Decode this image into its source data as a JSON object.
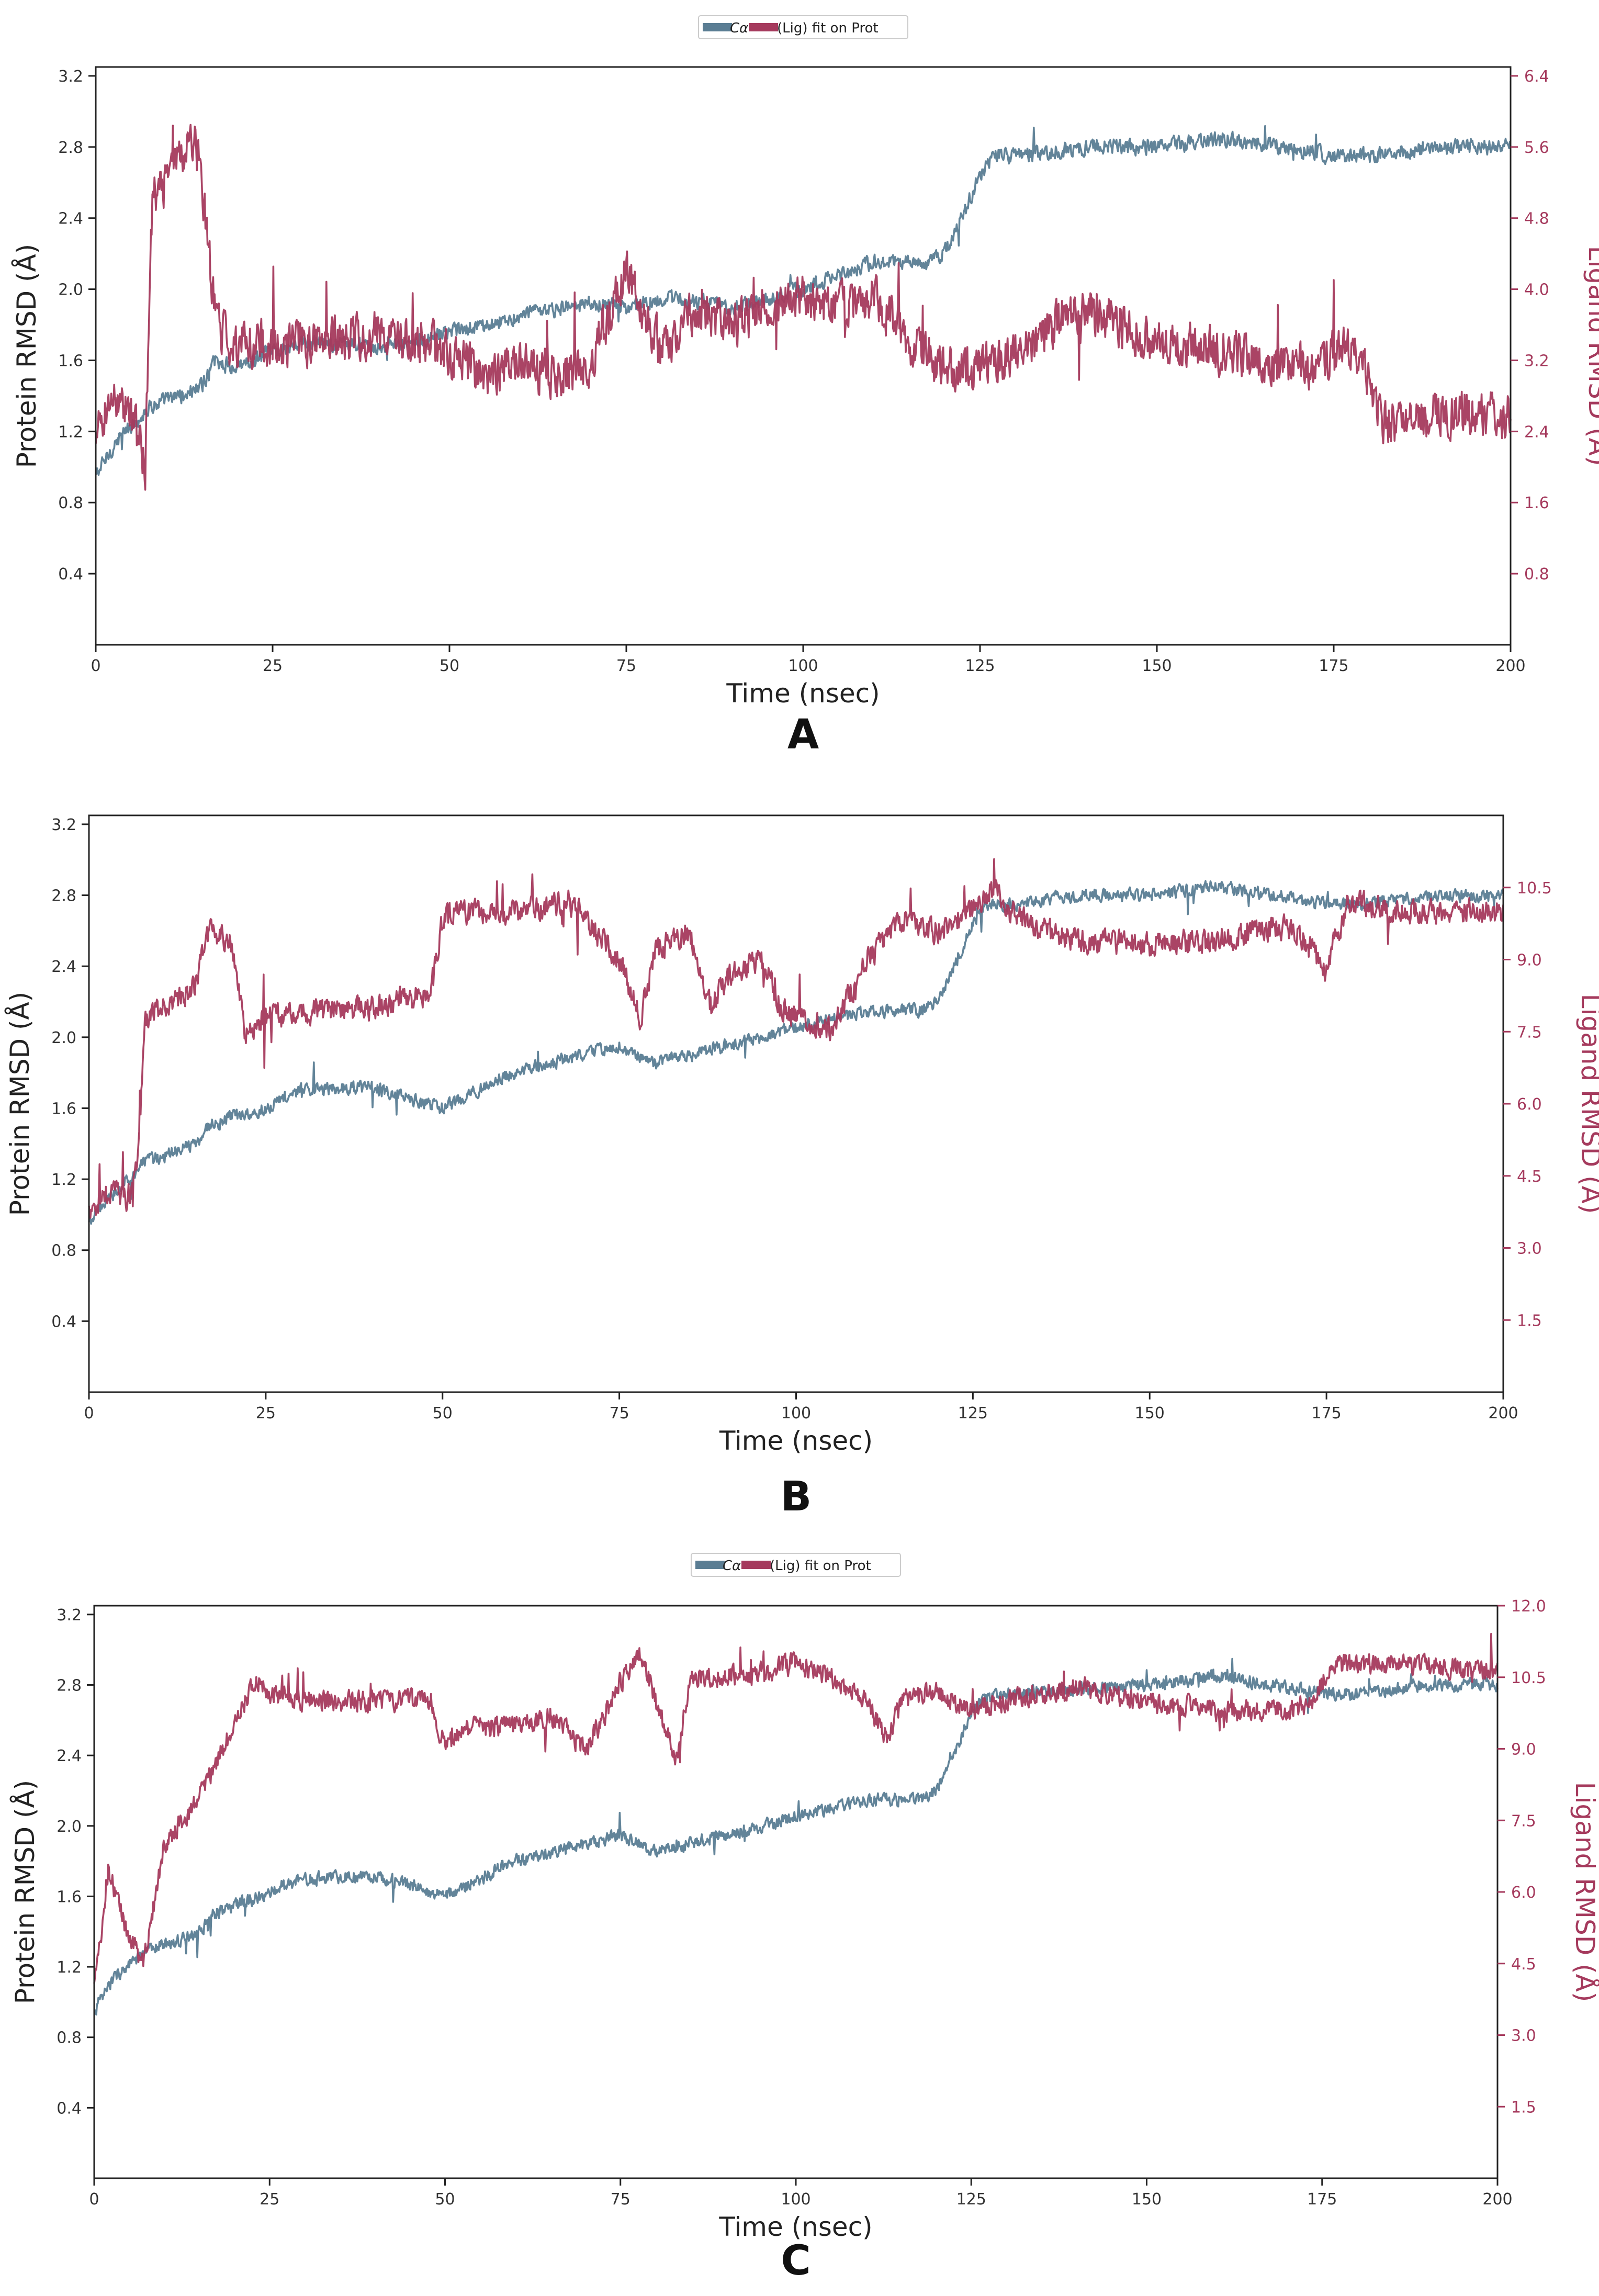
{
  "colors": {
    "protein": "#5a7d93",
    "ligand": "#a53a5d",
    "axis": "#222222",
    "tick_text": "#333333"
  },
  "chart_data": [
    {
      "type": "line",
      "panel_label": "A",
      "legend": {
        "items": [
          "Cα",
          "(Lig) fit on Prot"
        ],
        "placement": "top-center"
      },
      "xlabel": "Time (nsec)",
      "ylabel": "Protein RMSD (Å)",
      "y2label": "Ligand RMSD (Å)",
      "xlim": [
        0,
        200
      ],
      "ylim": [
        0,
        3.25
      ],
      "y2lim": [
        0,
        6.5
      ],
      "xticks": [
        "0",
        "25",
        "50",
        "75",
        "100",
        "125",
        "150",
        "175",
        "200"
      ],
      "yticks": [
        "0.4",
        "0.8",
        "1.2",
        "1.6",
        "2.0",
        "2.4",
        "2.8",
        "3.2"
      ],
      "y2ticks": [
        "0.8",
        "1.6",
        "2.4",
        "3.2",
        "4.0",
        "4.8",
        "5.6",
        "6.4"
      ],
      "series": [
        {
          "name": "Cα",
          "axis": "left",
          "noise": 0.06,
          "x": [
            0,
            3,
            8,
            12,
            15,
            17,
            20,
            25,
            30,
            40,
            50,
            60,
            70,
            75,
            80,
            90,
            100,
            110,
            118,
            120,
            123,
            125,
            127,
            130,
            140,
            150,
            160,
            175,
            180,
            190,
            200
          ],
          "y": [
            0.95,
            1.15,
            1.35,
            1.4,
            1.45,
            1.6,
            1.55,
            1.65,
            1.7,
            1.68,
            1.75,
            1.85,
            1.92,
            1.9,
            1.95,
            1.9,
            2.0,
            2.15,
            2.15,
            2.2,
            2.45,
            2.65,
            2.75,
            2.75,
            2.8,
            2.8,
            2.85,
            2.75,
            2.75,
            2.8,
            2.8
          ]
        },
        {
          "name": "(Lig) fit on Prot",
          "axis": "right",
          "noise": 0.35,
          "x": [
            0,
            1,
            3,
            5,
            7,
            8,
            10,
            12,
            14,
            15,
            17,
            19,
            25,
            30,
            40,
            50,
            55,
            60,
            65,
            70,
            75,
            80,
            85,
            90,
            95,
            100,
            105,
            110,
            115,
            120,
            125,
            130,
            140,
            150,
            160,
            170,
            178,
            182,
            185,
            190,
            200
          ],
          "y": [
            2.2,
            2.6,
            2.8,
            2.6,
            2.0,
            5.0,
            5.2,
            5.5,
            5.7,
            5.2,
            3.6,
            3.4,
            3.4,
            3.4,
            3.5,
            3.3,
            3.0,
            3.2,
            3.0,
            3.2,
            4.2,
            3.3,
            3.8,
            3.6,
            3.8,
            3.9,
            3.8,
            3.9,
            3.4,
            3.1,
            3.1,
            3.3,
            3.8,
            3.4,
            3.3,
            3.1,
            3.4,
            2.5,
            2.5,
            2.6,
            2.6
          ]
        }
      ]
    },
    {
      "type": "line",
      "panel_label": "B",
      "legend": null,
      "xlabel": "Time (nsec)",
      "ylabel": "Protein RMSD (Å)",
      "y2label": "Ligand RMSD (Å)",
      "xlim": [
        0,
        200
      ],
      "ylim": [
        0,
        3.25
      ],
      "y2lim": [
        0,
        12
      ],
      "xticks": [
        "0",
        "25",
        "50",
        "75",
        "100",
        "125",
        "150",
        "175",
        "200"
      ],
      "yticks": [
        "0.4",
        "0.8",
        "1.2",
        "1.6",
        "2.0",
        "2.4",
        "2.8",
        "3.2"
      ],
      "y2ticks": [
        "1.5",
        "3.0",
        "4.5",
        "6.0",
        "7.5",
        "9.0",
        "10.5"
      ],
      "series": [
        {
          "name": "Cα",
          "axis": "left",
          "noise": 0.05,
          "x": [
            0,
            3,
            8,
            12,
            15,
            17,
            20,
            25,
            30,
            40,
            50,
            60,
            70,
            75,
            80,
            90,
            100,
            110,
            118,
            120,
            123,
            125,
            127,
            130,
            140,
            150,
            160,
            175,
            180,
            190,
            200
          ],
          "y": [
            0.95,
            1.1,
            1.3,
            1.35,
            1.4,
            1.5,
            1.55,
            1.6,
            1.7,
            1.72,
            1.6,
            1.8,
            1.9,
            1.95,
            1.85,
            1.95,
            2.05,
            2.15,
            2.15,
            2.2,
            2.45,
            2.65,
            2.75,
            2.75,
            2.8,
            2.8,
            2.85,
            2.75,
            2.75,
            2.8,
            2.8
          ]
        },
        {
          "name": "(Lig) fit on Prot",
          "axis": "right",
          "noise": 0.35,
          "x": [
            0,
            3,
            6,
            7,
            8,
            10,
            15,
            17,
            20,
            22,
            25,
            30,
            40,
            48,
            50,
            52,
            60,
            68,
            75,
            78,
            80,
            85,
            88,
            90,
            95,
            98,
            100,
            105,
            110,
            115,
            120,
            125,
            128,
            130,
            135,
            140,
            150,
            160,
            170,
            175,
            178,
            185,
            200
          ],
          "y": [
            3.8,
            4.2,
            4.0,
            5.0,
            7.8,
            8.0,
            8.4,
            9.6,
            9.4,
            7.5,
            7.8,
            7.9,
            8.0,
            8.3,
            9.8,
            10.0,
            10.0,
            10.2,
            9.0,
            7.8,
            9.2,
            9.6,
            8.0,
            8.6,
            9.0,
            8.0,
            7.8,
            7.5,
            9.0,
            9.8,
            9.6,
            10.0,
            10.5,
            10.0,
            9.6,
            9.4,
            9.3,
            9.4,
            9.7,
            8.8,
            10.2,
            10.0,
            10.0
          ]
        }
      ]
    },
    {
      "type": "line",
      "panel_label": "C",
      "legend": {
        "items": [
          "Cα",
          "(Lig) fit on Prot"
        ],
        "placement": "top-center"
      },
      "xlabel": "Time (nsec)",
      "ylabel": "Protein RMSD (Å)",
      "y2label": "Ligand RMSD (Å)",
      "xlim": [
        0,
        200
      ],
      "ylim": [
        0,
        3.25
      ],
      "y2lim": [
        0,
        12
      ],
      "xticks": [
        "0",
        "25",
        "50",
        "75",
        "100",
        "125",
        "150",
        "175",
        "200"
      ],
      "yticks": [
        "0.4",
        "0.8",
        "1.2",
        "1.6",
        "2.0",
        "2.4",
        "2.8",
        "3.2"
      ],
      "y2ticks": [
        "1.5",
        "3.0",
        "4.5",
        "6.0",
        "7.5",
        "9.0",
        "10.5",
        "12.0"
      ],
      "series": [
        {
          "name": "Cα",
          "axis": "left",
          "noise": 0.05,
          "x": [
            0,
            3,
            8,
            12,
            15,
            17,
            20,
            25,
            30,
            40,
            50,
            60,
            70,
            75,
            80,
            90,
            100,
            110,
            118,
            120,
            123,
            125,
            127,
            130,
            140,
            150,
            160,
            175,
            180,
            190,
            200
          ],
          "y": [
            0.95,
            1.15,
            1.3,
            1.35,
            1.4,
            1.5,
            1.55,
            1.62,
            1.7,
            1.72,
            1.6,
            1.8,
            1.9,
            1.95,
            1.85,
            1.95,
            2.05,
            2.15,
            2.15,
            2.2,
            2.45,
            2.65,
            2.72,
            2.75,
            2.78,
            2.8,
            2.85,
            2.75,
            2.75,
            2.8,
            2.8
          ]
        },
        {
          "name": "(Lig) fit on Prot",
          "axis": "right",
          "noise": 0.3,
          "x": [
            0,
            2,
            3,
            5,
            7,
            10,
            15,
            20,
            23,
            25,
            30,
            40,
            48,
            50,
            52,
            60,
            65,
            70,
            72,
            75,
            78,
            80,
            83,
            85,
            90,
            95,
            100,
            105,
            110,
            113,
            115,
            120,
            125,
            130,
            140,
            150,
            160,
            170,
            174,
            175,
            178,
            185,
            200
          ],
          "y": [
            4.0,
            6.5,
            6.0,
            5.0,
            4.5,
            7.0,
            8.0,
            9.5,
            10.5,
            10.2,
            10.0,
            10.0,
            10.0,
            9.0,
            9.4,
            9.5,
            9.7,
            9.0,
            9.5,
            10.4,
            11.0,
            10.0,
            8.8,
            10.5,
            10.5,
            10.6,
            10.8,
            10.5,
            10.0,
            9.2,
            10.0,
            10.2,
            9.8,
            10.0,
            10.3,
            10.0,
            9.8,
            9.8,
            10.0,
            10.4,
            10.8,
            10.8,
            10.6
          ]
        }
      ]
    }
  ]
}
